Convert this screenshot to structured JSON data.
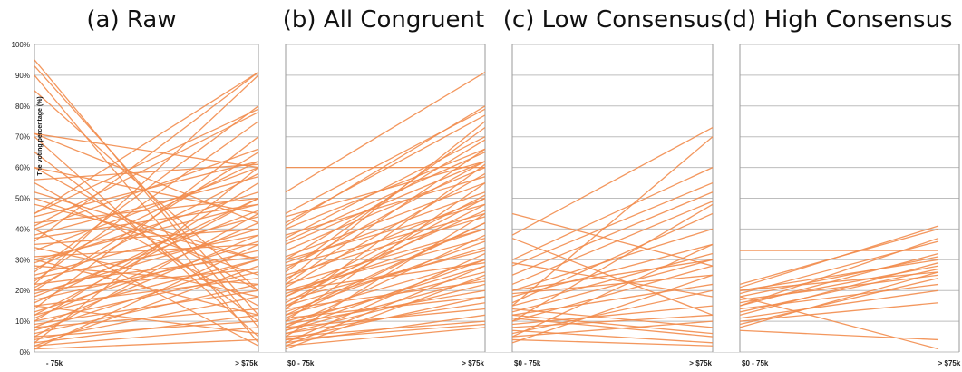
{
  "chart_data": {
    "type": "line",
    "ylabel": "The voting percentage (%)",
    "ylim": [
      0,
      100
    ],
    "y_ticks": [
      "0%",
      "10%",
      "20%",
      "30%",
      "40%",
      "50%",
      "60%",
      "70%",
      "80%",
      "90%",
      "100%"
    ],
    "grid": true,
    "line_color": "#f28c4c",
    "panels": [
      {
        "title": "(a) Raw",
        "x_labels": [
          "- 75k",
          "> $75k"
        ],
        "lines": [
          [
            95,
            8
          ],
          [
            93,
            12
          ],
          [
            90,
            3
          ],
          [
            85,
            20
          ],
          [
            71,
            60
          ],
          [
            71,
            42
          ],
          [
            70,
            5
          ],
          [
            60,
            45
          ],
          [
            60,
            20
          ],
          [
            56,
            61
          ],
          [
            52,
            30
          ],
          [
            45,
            91
          ],
          [
            45,
            79
          ],
          [
            44,
            62
          ],
          [
            42,
            50
          ],
          [
            41,
            78
          ],
          [
            40,
            66
          ],
          [
            38,
            57
          ],
          [
            37,
            48
          ],
          [
            35,
            40
          ],
          [
            33,
            60
          ],
          [
            31,
            35
          ],
          [
            30,
            48
          ],
          [
            29,
            52
          ],
          [
            28,
            22
          ],
          [
            27,
            62
          ],
          [
            25,
            44
          ],
          [
            24,
            38
          ],
          [
            23,
            75
          ],
          [
            22,
            31
          ],
          [
            21,
            58
          ],
          [
            20,
            27
          ],
          [
            19,
            40
          ],
          [
            18,
            46
          ],
          [
            17,
            33
          ],
          [
            16,
            50
          ],
          [
            15,
            24
          ],
          [
            14,
            70
          ],
          [
            13,
            36
          ],
          [
            12,
            30
          ],
          [
            11,
            42
          ],
          [
            10,
            26
          ],
          [
            10,
            55
          ],
          [
            9,
            20
          ],
          [
            8,
            38
          ],
          [
            8,
            14
          ],
          [
            7,
            30
          ],
          [
            6,
            22
          ],
          [
            5,
            45
          ],
          [
            5,
            10
          ],
          [
            4,
            18
          ],
          [
            3,
            60
          ],
          [
            3,
            12
          ],
          [
            2,
            28
          ],
          [
            2,
            8
          ],
          [
            1,
            35
          ],
          [
            1,
            4
          ],
          [
            48,
            30
          ],
          [
            55,
            15
          ],
          [
            65,
            10
          ],
          [
            26,
            80
          ],
          [
            36,
            91
          ],
          [
            30,
            12
          ],
          [
            20,
            65
          ],
          [
            15,
            6
          ],
          [
            12,
            50
          ],
          [
            50,
            25
          ],
          [
            40,
            2
          ],
          [
            34,
            18
          ],
          [
            22,
            90
          ]
        ]
      },
      {
        "title": "(b) All Congruent",
        "x_labels": [
          "$0 - 75k",
          "> $75k"
        ],
        "lines": [
          [
            60,
            60
          ],
          [
            52,
            91
          ],
          [
            45,
            79
          ],
          [
            44,
            62
          ],
          [
            42,
            77
          ],
          [
            41,
            80
          ],
          [
            40,
            66
          ],
          [
            38,
            57
          ],
          [
            37,
            70
          ],
          [
            36,
            65
          ],
          [
            35,
            62
          ],
          [
            33,
            60
          ],
          [
            31,
            55
          ],
          [
            30,
            48
          ],
          [
            29,
            52
          ],
          [
            28,
            45
          ],
          [
            27,
            62
          ],
          [
            26,
            73
          ],
          [
            25,
            44
          ],
          [
            24,
            50
          ],
          [
            23,
            75
          ],
          [
            22,
            40
          ],
          [
            21,
            58
          ],
          [
            20,
            37
          ],
          [
            19,
            40
          ],
          [
            18,
            46
          ],
          [
            17,
            33
          ],
          [
            16,
            50
          ],
          [
            15,
            34
          ],
          [
            14,
            61
          ],
          [
            13,
            36
          ],
          [
            12,
            30
          ],
          [
            11,
            42
          ],
          [
            10,
            26
          ],
          [
            10,
            55
          ],
          [
            9,
            28
          ],
          [
            8,
            38
          ],
          [
            8,
            14
          ],
          [
            7,
            30
          ],
          [
            6,
            22
          ],
          [
            5,
            45
          ],
          [
            5,
            10
          ],
          [
            4,
            18
          ],
          [
            3,
            32
          ],
          [
            3,
            12
          ],
          [
            2,
            28
          ],
          [
            2,
            8
          ],
          [
            1,
            25
          ],
          [
            12,
            42
          ],
          [
            18,
            51
          ],
          [
            9,
            20
          ],
          [
            6,
            16
          ],
          [
            4,
            9
          ],
          [
            22,
            66
          ],
          [
            30,
            69
          ],
          [
            15,
            48
          ],
          [
            20,
            29
          ],
          [
            11,
            18
          ],
          [
            7,
            24
          ],
          [
            14,
            23
          ]
        ]
      },
      {
        "title": "(c) Low Consensus",
        "x_labels": [
          "$0 - 75k",
          "> $75k"
        ],
        "lines": [
          [
            45,
            28
          ],
          [
            38,
            73
          ],
          [
            37,
            12
          ],
          [
            30,
            60
          ],
          [
            29,
            18
          ],
          [
            28,
            55
          ],
          [
            25,
            52
          ],
          [
            22,
            49
          ],
          [
            20,
            40
          ],
          [
            19,
            25
          ],
          [
            18,
            35
          ],
          [
            16,
            45
          ],
          [
            15,
            32
          ],
          [
            14,
            8
          ],
          [
            13,
            30
          ],
          [
            12,
            22
          ],
          [
            11,
            5
          ],
          [
            10,
            28
          ],
          [
            9,
            15
          ],
          [
            8,
            12
          ],
          [
            7,
            3
          ],
          [
            6,
            20
          ],
          [
            5,
            35
          ],
          [
            5,
            10
          ],
          [
            4,
            2
          ],
          [
            3,
            25
          ],
          [
            15,
            70
          ],
          [
            10,
            48
          ],
          [
            20,
            30
          ],
          [
            12,
            6
          ]
        ]
      },
      {
        "title": "(d) High Consensus",
        "x_labels": [
          "$0 - 75k",
          "> $75k"
        ],
        "lines": [
          [
            33,
            33
          ],
          [
            22,
            40
          ],
          [
            21,
            41
          ],
          [
            20,
            30
          ],
          [
            19,
            36
          ],
          [
            18,
            31
          ],
          [
            17,
            25
          ],
          [
            16,
            28
          ],
          [
            15,
            32
          ],
          [
            14,
            22
          ],
          [
            13,
            27
          ],
          [
            12,
            29
          ],
          [
            11,
            20
          ],
          [
            10,
            16
          ],
          [
            9,
            24
          ],
          [
            8,
            26
          ],
          [
            7,
            4
          ],
          [
            18,
            1
          ],
          [
            20,
            26
          ],
          [
            15,
            37
          ]
        ]
      }
    ]
  }
}
